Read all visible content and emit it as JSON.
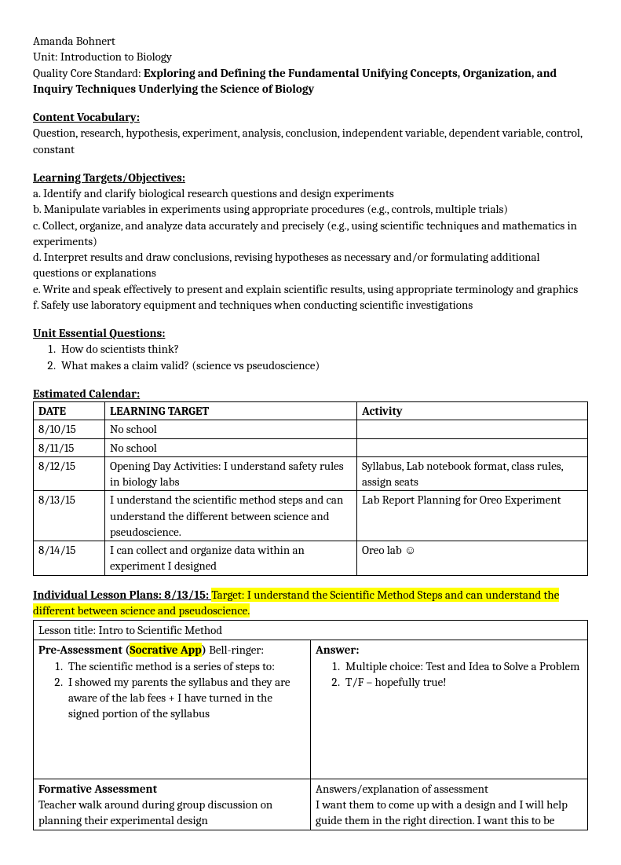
{
  "header": {
    "author": "Amanda Bohnert",
    "unit_label": "Unit:",
    "unit_value": "Introduction to Biology",
    "qc_label": "Quality Core Standard:",
    "qc_value": "Exploring and Defining the Fundamental Unifying Concepts, Organization, and Inquiry Techniques Underlying the Science of Biology"
  },
  "vocab": {
    "heading": "Content Vocabulary:",
    "text": "Question, research, hypothesis, experiment, analysis, conclusion, independent variable, dependent variable, control, constant"
  },
  "objectives": {
    "heading": "Learning Targets/Objectives:",
    "items": [
      "a. Identify and clarify biological research questions and design experiments",
      "b. Manipulate variables in experiments using appropriate procedures (e.g., controls, multiple trials)",
      "c. Collect, organize, and analyze data accurately and precisely (e.g., using scientific techniques and mathematics in experiments)",
      "d. Interpret results and draw conclusions, revising hypotheses as necessary and/or formulating additional questions or explanations",
      "e. Write and speak effectively to present and explain scientific results, using appropriate terminology and graphics",
      "f. Safely use laboratory equipment and techniques when conducting scientific investigations"
    ]
  },
  "eq": {
    "heading": "Unit Essential Questions:",
    "items": [
      "How do scientists think?",
      "What makes a claim valid? (science vs pseudoscience)"
    ]
  },
  "calendar": {
    "heading": "Estimated Calendar:",
    "columns": [
      "DATE",
      "LEARNING TARGET",
      "Activity"
    ],
    "rows": [
      [
        "8/10/15",
        "No school",
        ""
      ],
      [
        "8/11/15",
        "No school",
        ""
      ],
      [
        "8/12/15",
        "Opening Day Activities: I understand safety rules in biology labs",
        "Syllabus, Lab notebook format, class rules, assign seats"
      ],
      [
        "8/13/15",
        "I understand the scientific method steps and can understand the different between science and pseudoscience.",
        "Lab Report Planning for Oreo Experiment"
      ],
      [
        "8/14/15",
        "I can collect and organize data within an experiment I designed",
        "Oreo lab ☺"
      ]
    ]
  },
  "lesson": {
    "heading_prefix": "Individual Lesson Plans:  8/13/15:  ",
    "heading_hl": "Target: I understand the Scientific Method Steps and can understand the different between science and pseudoscience.",
    "title_row": {
      "prefix": "Lesson title: Intro to Scientific Method"
    },
    "pre": {
      "label_prefix": "Pre-Assessment (",
      "label_hl": "Socrative App",
      "label_suffix": ") Bell-ringer:",
      "items": [
        "The scientific method is a series of steps to:",
        "I showed my parents the syllabus and they are aware of the lab fees + I have turned in the signed portion of the syllabus"
      ]
    },
    "pre_ans": {
      "label": "Answer:",
      "items": [
        "Multiple choice: Test and Idea to Solve a Problem",
        "T/F – hopefully true!"
      ]
    },
    "form": {
      "label": "Formative Assessment",
      "text": "Teacher walk around during group discussion on planning their experimental design"
    },
    "form_ans": {
      "line1": "Answers/explanation of assessment",
      "line2": "I want them to come up with a design and I will help guide them in the right direction. I want this to be"
    }
  }
}
